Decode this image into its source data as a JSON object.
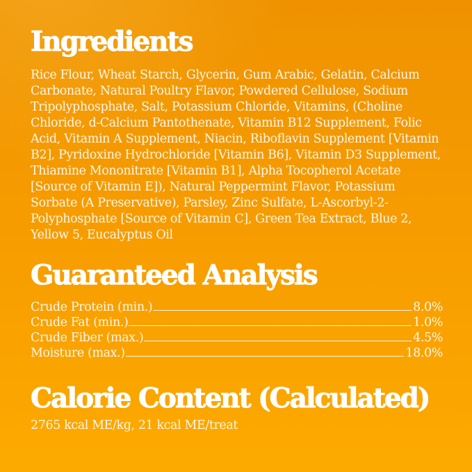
{
  "label": {
    "colors": {
      "background_top": "#EF9200",
      "background_bottom": "#FDAA00",
      "heading_text": "#FFFFFF",
      "body_text": "#FCF7EA"
    },
    "ingredients": {
      "title": "Ingredients",
      "text": "Rice Flour, Wheat Starch, Glycerin, Gum Arabic, Gelatin, Calcium Carbonate, Natural Poultry Flavor, Powdered Cellulose, Sodium Tripolyphosphate, Salt, Potassium Chloride, Vitamins, (Choline Chloride, d-Calcium Pantothenate, Vitamin B12 Supplement, Folic Acid, Vitamin A Supplement, Niacin, Riboflavin Supplement [Vitamin B2], Pyridoxine Hydrochloride [Vitamin B6], Vitamin D3 Supplement, Thiamine Mononitrate [Vitamin B1], Alpha Tocopherol Acetate [Source of Vitamin E]), Natural Peppermint Flavor, Potassium Sorbate (A Preservative), Parsley, Zinc Sulfate, L-Ascorbyl-2-Polyphosphate [Source of Vitamin C], Green Tea Extract, Blue 2, Yellow 5, Eucalyptus Oil"
    },
    "guaranteed_analysis": {
      "title": "Guaranteed Analysis",
      "rows": [
        {
          "label": "Crude Protein (min.)",
          "value": "8.0%"
        },
        {
          "label": "Crude Fat (min.)",
          "value": "1.0%"
        },
        {
          "label": "Crude Fiber (max.)",
          "value": "4.5%"
        },
        {
          "label": "Moisture (max.)",
          "value": "18.0%"
        }
      ]
    },
    "calorie_content": {
      "title": "Calorie Content (Calculated)",
      "text": "2765 kcal ME/kg, 21 kcal ME/treat"
    }
  }
}
